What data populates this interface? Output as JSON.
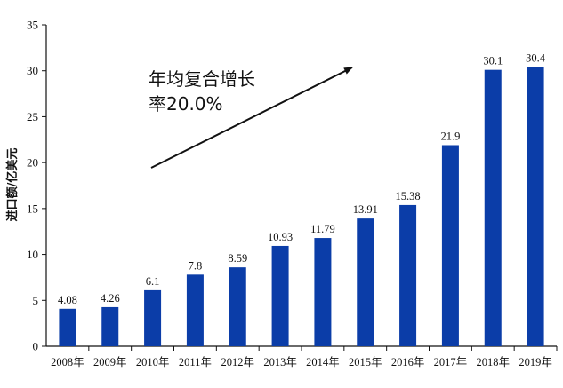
{
  "chart_data": {
    "type": "bar",
    "title": "",
    "xlabel": "",
    "ylabel": "进口额/亿美元",
    "ylim": [
      0,
      35
    ],
    "yticks": [
      0,
      5,
      10,
      15,
      20,
      25,
      30,
      35
    ],
    "categories": [
      "2008年",
      "2009年",
      "2010年",
      "2011年",
      "2012年",
      "2013年",
      "2014年",
      "2015年",
      "2016年",
      "2017年",
      "2018年",
      "2019年"
    ],
    "values": [
      4.08,
      4.26,
      6.1,
      7.8,
      8.59,
      10.93,
      11.79,
      13.91,
      15.38,
      21.9,
      30.1,
      30.4
    ],
    "value_labels": [
      "4.08",
      "4.26",
      "6.1",
      "7.8",
      "8.59",
      "10.93",
      "11.79",
      "13.91",
      "15.38",
      "21.9",
      "30.1",
      "30.4"
    ],
    "bar_color": "#0b3da8",
    "grid": false,
    "annotation": {
      "line1": "年均复合增长",
      "line2": "率20.0%",
      "arrow": "up-right"
    }
  }
}
